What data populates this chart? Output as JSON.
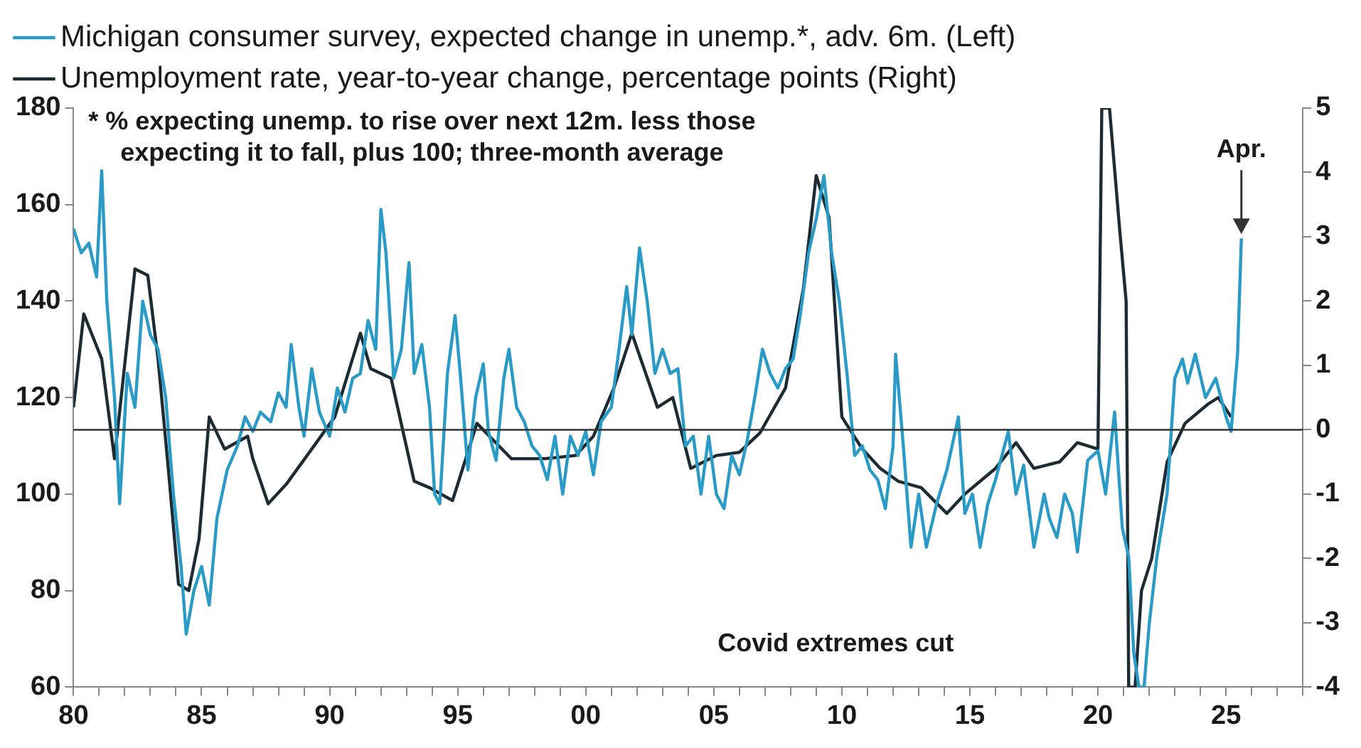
{
  "chart_data": {
    "type": "line",
    "legend": "top left",
    "annotations": [
      "* % expecting unemp. to rise over next 12m. less those expecting it to fall, plus 100; three-month average",
      {
        "text": "Apr.",
        "x": 2025.6,
        "y": 153
      },
      "Covid extremes cut"
    ],
    "xlim": [
      1980,
      2028
    ],
    "xticks": [
      {
        "value": 1980,
        "label": "80"
      },
      {
        "value": 1981,
        "label": null
      },
      {
        "value": 1982,
        "label": null
      },
      {
        "value": 1983,
        "label": null
      },
      {
        "value": 1984,
        "label": null
      },
      {
        "value": 1985,
        "label": "85"
      },
      {
        "value": 1986,
        "label": null
      },
      {
        "value": 1987,
        "label": null
      },
      {
        "value": 1988,
        "label": null
      },
      {
        "value": 1989,
        "label": null
      },
      {
        "value": 1990,
        "label": "90"
      },
      {
        "value": 1991,
        "label": null
      },
      {
        "value": 1992,
        "label": null
      },
      {
        "value": 1993,
        "label": null
      },
      {
        "value": 1994,
        "label": null
      },
      {
        "value": 1995,
        "label": "95"
      },
      {
        "value": 1996,
        "label": null
      },
      {
        "value": 1997,
        "label": null
      },
      {
        "value": 1998,
        "label": null
      },
      {
        "value": 1999,
        "label": null
      },
      {
        "value": 2000,
        "label": "00"
      },
      {
        "value": 2001,
        "label": null
      },
      {
        "value": 2002,
        "label": null
      },
      {
        "value": 2003,
        "label": null
      },
      {
        "value": 2004,
        "label": null
      },
      {
        "value": 2005,
        "label": "05"
      },
      {
        "value": 2006,
        "label": null
      },
      {
        "value": 2007,
        "label": null
      },
      {
        "value": 2008,
        "label": null
      },
      {
        "value": 2009,
        "label": null
      },
      {
        "value": 2010,
        "label": "10"
      },
      {
        "value": 2011,
        "label": null
      },
      {
        "value": 2012,
        "label": null
      },
      {
        "value": 2013,
        "label": null
      },
      {
        "value": 2014,
        "label": null
      },
      {
        "value": 2015,
        "label": "15"
      },
      {
        "value": 2016,
        "label": null
      },
      {
        "value": 2017,
        "label": null
      },
      {
        "value": 2018,
        "label": null
      },
      {
        "value": 2019,
        "label": null
      },
      {
        "value": 2020,
        "label": "20"
      },
      {
        "value": 2021,
        "label": null
      },
      {
        "value": 2022,
        "label": null
      },
      {
        "value": 2023,
        "label": null
      },
      {
        "value": 2024,
        "label": null
      },
      {
        "value": 2025,
        "label": "25"
      },
      {
        "value": 2026,
        "label": null
      },
      {
        "value": 2027,
        "label": null
      },
      {
        "value": 2028,
        "label": null
      }
    ],
    "ylim": [
      60,
      180
    ],
    "yticks": [
      60,
      80,
      100,
      120,
      140,
      160,
      180
    ],
    "y2lim": [
      -4,
      5
    ],
    "y2ticks": [
      -4,
      -3,
      -2,
      -1,
      0,
      1,
      2,
      3,
      4,
      5
    ],
    "ref_lines": [
      {
        "axis": "y2",
        "value": 0,
        "color": "#333333"
      }
    ],
    "series": [
      {
        "name": "Michigan consumer survey, expected change in unemp.*, adv. 6m. (Left)",
        "color": "#2a9bc6",
        "x": [
          1980,
          1980.3,
          1980.6,
          1980.9,
          1981.1,
          1981.3,
          1981.6,
          1981.8,
          1982.1,
          1982.4,
          1982.7,
          1983,
          1983.3,
          1983.6,
          1983.9,
          1984.2,
          1984.4,
          1984.7,
          1985,
          1985.3,
          1985.6,
          1986,
          1986.4,
          1986.7,
          1987,
          1987.3,
          1987.7,
          1988,
          1988.3,
          1988.5,
          1988.8,
          1989,
          1989.3,
          1989.6,
          1990,
          1990.3,
          1990.6,
          1990.9,
          1991.2,
          1991.5,
          1991.8,
          1992,
          1992.2,
          1992.5,
          1992.8,
          1993.1,
          1993.3,
          1993.6,
          1993.9,
          1994.1,
          1994.3,
          1994.6,
          1994.9,
          1995.1,
          1995.4,
          1995.7,
          1996,
          1996.2,
          1996.5,
          1996.8,
          1997,
          1997.3,
          1997.6,
          1997.9,
          1998.2,
          1998.5,
          1998.8,
          1999.1,
          1999.4,
          1999.7,
          2000,
          2000.3,
          2000.6,
          2001,
          2001.3,
          2001.6,
          2001.8,
          2002.1,
          2002.4,
          2002.7,
          2003,
          2003.3,
          2003.6,
          2003.9,
          2004.2,
          2004.5,
          2004.8,
          2005.1,
          2005.4,
          2005.7,
          2006,
          2006.3,
          2006.6,
          2006.9,
          2007.2,
          2007.5,
          2007.8,
          2008.1,
          2008.4,
          2008.7,
          2009,
          2009.3,
          2009.6,
          2009.9,
          2010.2,
          2010.5,
          2010.8,
          2011.1,
          2011.4,
          2011.7,
          2012,
          2012.1,
          2012.4,
          2012.7,
          2013,
          2013.3,
          2013.7,
          2014.1,
          2014.55,
          2014.8,
          2015.1,
          2015.4,
          2015.7,
          2016,
          2016.5,
          2016.8,
          2017.1,
          2017.5,
          2017.9,
          2018.1,
          2018.4,
          2018.7,
          2019,
          2019.2,
          2019.6,
          2020,
          2020.3,
          2020.65,
          2020.95,
          2021.2,
          2021.4,
          2021.6,
          2021.8,
          2022,
          2022.3,
          2022.7,
          2023,
          2023.3,
          2023.5,
          2023.8,
          2024.2,
          2024.6,
          2025,
          2025.2,
          2025.45,
          2025.6
        ],
        "values": [
          155,
          150,
          152,
          145,
          167,
          140,
          120,
          98,
          125,
          118,
          140,
          133,
          130,
          120,
          100,
          85,
          71,
          80,
          85,
          77,
          95,
          105,
          110,
          116,
          113,
          117,
          115,
          121,
          118,
          131,
          118,
          112,
          126,
          117,
          112,
          122,
          117,
          124,
          125,
          136,
          130,
          159,
          150,
          124,
          130,
          148,
          125,
          131,
          118,
          100,
          98,
          125,
          137,
          125,
          105,
          120,
          127,
          113,
          107,
          124,
          130,
          118,
          115,
          110,
          108,
          103,
          112,
          100,
          112,
          108,
          113,
          104,
          115,
          118,
          130,
          143,
          133,
          151,
          140,
          125,
          130,
          125,
          126,
          110,
          112,
          100,
          112,
          100,
          97,
          108,
          104,
          111,
          120,
          130,
          125,
          122,
          126,
          128,
          138,
          150,
          157,
          166,
          150,
          140,
          125,
          108,
          110,
          105,
          103,
          97,
          110,
          129,
          110,
          89,
          100,
          89,
          98,
          105,
          116,
          96,
          100,
          89,
          98,
          103,
          113,
          100,
          106,
          89,
          100,
          95,
          91,
          100,
          96,
          88,
          107,
          109,
          100,
          117,
          93,
          87,
          67,
          60,
          60,
          73,
          87,
          100,
          124,
          128,
          123,
          129,
          120,
          124,
          116,
          113,
          129,
          153
        ]
      },
      {
        "name": "Unemployment rate, year-to-year change, percentage points (Right)",
        "color": "#1d2b33",
        "axis": "y2",
        "x": [
          1980,
          1980.4,
          1980.7,
          1981.1,
          1981.6,
          1981.9,
          1982.4,
          1982.9,
          1983.3,
          1983.7,
          1984.1,
          1984.5,
          1984.9,
          1985.3,
          1985.9,
          1986.8,
          1987,
          1987.6,
          1988.3,
          1989.3,
          1990.2,
          1991.2,
          1991.6,
          1992.4,
          1993.3,
          1993.9,
          1994.8,
          1995.75,
          1997.1,
          1998.4,
          1999.6,
          2000.3,
          2001.1,
          2001.8,
          2002.8,
          2003.4,
          2004.1,
          2005.1,
          2006,
          2006.8,
          2007.8,
          2008.5,
          2009,
          2009.5,
          2010,
          2010.8,
          2011.5,
          2012.2,
          2013.1,
          2014.1,
          2014.8,
          2016,
          2016.8,
          2017.5,
          2018.5,
          2019.2,
          2020,
          2020.15,
          2020.45,
          2020.85,
          2021.1,
          2021.2,
          2021.45,
          2021.7,
          2022.1,
          2022.7,
          2023.4,
          2024.3,
          2024.7,
          2025.2
        ],
        "values": [
          0.35,
          1.8,
          1.5,
          1.1,
          -0.45,
          0.65,
          2.5,
          2.4,
          1.1,
          -0.6,
          -2.4,
          -2.5,
          -1.7,
          0.2,
          -0.3,
          -0.1,
          -0.45,
          -1.15,
          -0.85,
          -0.3,
          0.2,
          1.5,
          0.95,
          0.8,
          -0.8,
          -0.9,
          -1.1,
          0.1,
          -0.45,
          -0.45,
          -0.4,
          -0.1,
          0.65,
          1.5,
          0.35,
          0.5,
          -0.6,
          -0.4,
          -0.35,
          -0.05,
          0.65,
          2.2,
          3.95,
          3.3,
          0.2,
          -0.3,
          -0.6,
          -0.8,
          -0.9,
          -1.3,
          -1,
          -0.6,
          -0.2,
          -0.6,
          -0.5,
          -0.2,
          -0.3,
          5,
          5,
          3.1,
          2,
          -4,
          -4,
          -2.5,
          -2,
          -0.5,
          0.1,
          0.4,
          0.5,
          0.2
        ]
      }
    ]
  }
}
